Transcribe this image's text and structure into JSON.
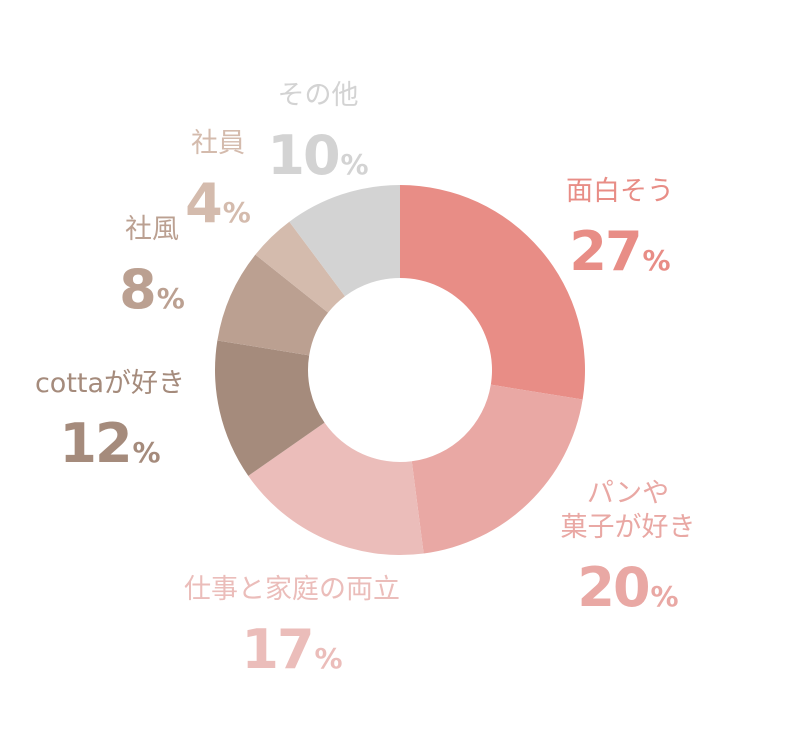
{
  "chart_data": {
    "type": "pie",
    "donut": true,
    "legend": "none",
    "unit": "%",
    "slices": [
      {
        "label": [
          "面白そう"
        ],
        "value": 27,
        "color": "#e88d86"
      },
      {
        "label": [
          "パンや",
          "菓子が好き"
        ],
        "value": 20,
        "color": "#e9a8a4"
      },
      {
        "label": [
          "仕事と家庭の両立"
        ],
        "value": 17,
        "color": "#ebbdba"
      },
      {
        "label": [
          "cottaが好き"
        ],
        "value": 12,
        "color": "#a58b7c"
      },
      {
        "label": [
          "社風"
        ],
        "value": 8,
        "color": "#bba091"
      },
      {
        "label": [
          "社員"
        ],
        "value": 4,
        "color": "#d4bbad"
      },
      {
        "label": [
          "その他"
        ],
        "value": 10,
        "color": "#d3d3d3"
      }
    ]
  }
}
